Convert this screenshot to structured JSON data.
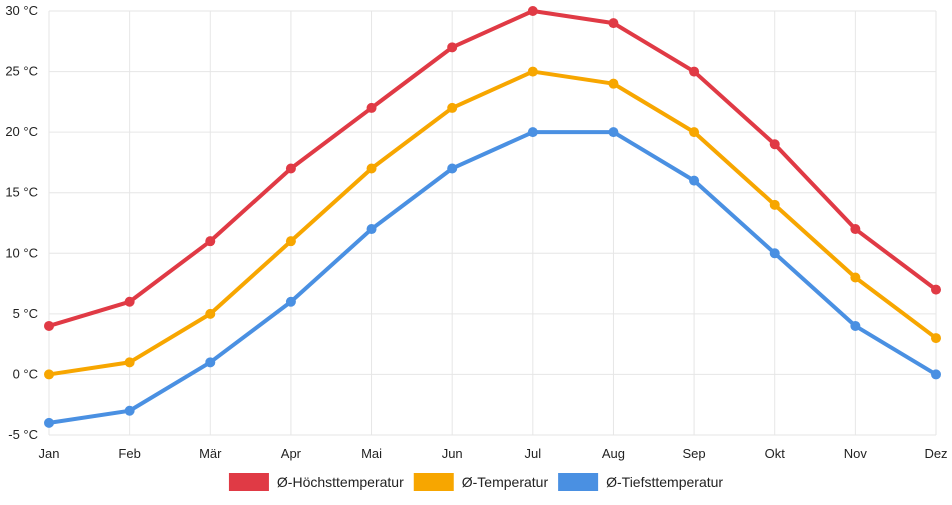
{
  "chart_data": {
    "type": "line",
    "categories": [
      "Jan",
      "Feb",
      "Mär",
      "Apr",
      "Mai",
      "Jun",
      "Jul",
      "Aug",
      "Sep",
      "Okt",
      "Nov",
      "Dez"
    ],
    "y_tick_labels": [
      "30 °C",
      "25 °C",
      "20 °C",
      "15 °C",
      "10 °C",
      "5 °C",
      "0 °C",
      "-5 °C"
    ],
    "y_tick_values": [
      30,
      25,
      20,
      15,
      10,
      5,
      0,
      -5
    ],
    "ylim": [
      -5,
      30
    ],
    "grid": true,
    "legend_position": "bottom",
    "series": [
      {
        "name": "Ø-Höchsttemperatur",
        "color": "#e03a45",
        "values": [
          4,
          6,
          11,
          17,
          22,
          27,
          30,
          29,
          25,
          19,
          12,
          7
        ]
      },
      {
        "name": "Ø-Temperatur",
        "color": "#f7a600",
        "values": [
          0,
          1,
          5,
          11,
          17,
          22,
          25,
          24,
          20,
          14,
          8,
          3
        ]
      },
      {
        "name": "Ø-Tiefsttemperatur",
        "color": "#4a90e2",
        "values": [
          -4,
          -3,
          1,
          6,
          12,
          17,
          20,
          20,
          16,
          10,
          4,
          0
        ]
      }
    ]
  }
}
